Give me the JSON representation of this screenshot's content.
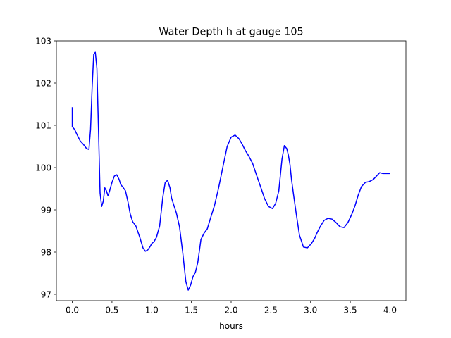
{
  "chart_data": {
    "type": "line",
    "title": "Water Depth h at gauge 105",
    "xlabel": "hours",
    "ylabel": "",
    "xlim": [
      -0.2,
      4.2
    ],
    "ylim": [
      96.85,
      103.0
    ],
    "x_ticks": [
      0.0,
      0.5,
      1.0,
      1.5,
      2.0,
      2.5,
      3.0,
      3.5,
      4.0
    ],
    "x_tick_labels": [
      "0.0",
      "0.5",
      "1.0",
      "1.5",
      "2.0",
      "2.5",
      "3.0",
      "3.5",
      "4.0"
    ],
    "y_ticks": [
      97,
      98,
      99,
      100,
      101,
      102,
      103
    ],
    "y_tick_labels": [
      "97",
      "98",
      "99",
      "100",
      "101",
      "102",
      "103"
    ],
    "grid": false,
    "legend": "none",
    "series": [
      {
        "color": "#0000ff",
        "x": [
          0.0,
          0.0,
          0.0,
          0.03,
          0.06,
          0.1,
          0.14,
          0.18,
          0.21,
          0.23,
          0.25,
          0.27,
          0.29,
          0.31,
          0.33,
          0.35,
          0.37,
          0.39,
          0.41,
          0.43,
          0.45,
          0.47,
          0.5,
          0.53,
          0.56,
          0.59,
          0.61,
          0.64,
          0.67,
          0.7,
          0.73,
          0.76,
          0.8,
          0.85,
          0.89,
          0.92,
          0.95,
          0.98,
          1.0,
          1.03,
          1.06,
          1.1,
          1.14,
          1.17,
          1.2,
          1.23,
          1.25,
          1.28,
          1.31,
          1.35,
          1.39,
          1.43,
          1.46,
          1.49,
          1.52,
          1.55,
          1.58,
          1.62,
          1.66,
          1.7,
          1.74,
          1.79,
          1.84,
          1.9,
          1.95,
          2.0,
          2.05,
          2.1,
          2.14,
          2.18,
          2.22,
          2.27,
          2.32,
          2.37,
          2.42,
          2.47,
          2.52,
          2.56,
          2.6,
          2.64,
          2.67,
          2.7,
          2.72,
          2.74,
          2.76,
          2.79,
          2.82,
          2.86,
          2.91,
          2.96,
          3.01,
          3.05,
          3.08,
          3.12,
          3.17,
          3.22,
          3.27,
          3.32,
          3.37,
          3.42,
          3.47,
          3.52,
          3.56,
          3.6,
          3.64,
          3.69,
          3.74,
          3.79,
          3.83,
          3.87,
          3.91,
          3.95,
          4.0
        ],
        "y": [
          101.43,
          101.2,
          100.97,
          100.9,
          100.78,
          100.63,
          100.55,
          100.45,
          100.43,
          100.9,
          101.9,
          102.68,
          102.73,
          102.35,
          100.9,
          99.4,
          99.08,
          99.2,
          99.52,
          99.45,
          99.33,
          99.45,
          99.65,
          99.8,
          99.83,
          99.72,
          99.6,
          99.53,
          99.45,
          99.2,
          98.9,
          98.72,
          98.62,
          98.35,
          98.1,
          98.02,
          98.05,
          98.13,
          98.2,
          98.25,
          98.35,
          98.62,
          99.3,
          99.65,
          99.7,
          99.52,
          99.28,
          99.1,
          98.93,
          98.6,
          98.0,
          97.3,
          97.1,
          97.22,
          97.42,
          97.52,
          97.75,
          98.3,
          98.45,
          98.55,
          98.8,
          99.1,
          99.5,
          100.05,
          100.5,
          100.72,
          100.77,
          100.68,
          100.55,
          100.4,
          100.28,
          100.1,
          99.82,
          99.55,
          99.27,
          99.08,
          99.03,
          99.15,
          99.45,
          100.2,
          100.52,
          100.45,
          100.3,
          100.08,
          99.72,
          99.3,
          98.9,
          98.4,
          98.12,
          98.1,
          98.2,
          98.32,
          98.45,
          98.6,
          98.75,
          98.8,
          98.78,
          98.7,
          98.6,
          98.58,
          98.7,
          98.9,
          99.1,
          99.35,
          99.55,
          99.65,
          99.67,
          99.72,
          99.8,
          99.88,
          99.86,
          99.86,
          99.86
        ]
      }
    ]
  }
}
